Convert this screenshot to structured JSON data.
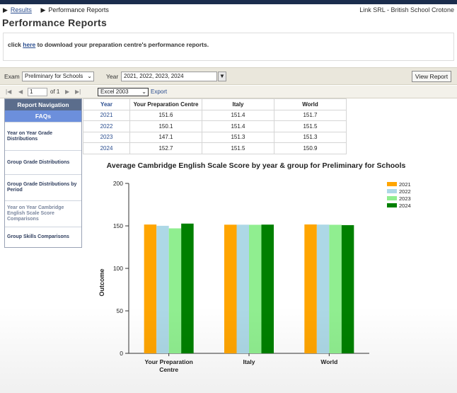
{
  "breadcrumb": {
    "results_link": "Results",
    "current": "Performance Reports",
    "right_text": "Link SRL - British School Crotone"
  },
  "page_title": "Performance Reports",
  "download": {
    "prefix": "click",
    "link_text": "here",
    "suffix": "to download your preparation centre's performance reports."
  },
  "filters": {
    "exam_label": "Exam",
    "exam_value": "Preliminary for Schools",
    "year_label": "Year",
    "year_value": "2021, 2022, 2023, 2024",
    "view_button": "View Report"
  },
  "pager": {
    "page": "1",
    "of_text": "of 1",
    "format": "Excel 2003",
    "export": "Export"
  },
  "nav": {
    "header": "Report Navigation",
    "faqs": "FAQs",
    "items": [
      "Year on Year Grade Distributions",
      "Group Grade Distributions",
      "Group Grade Distributions by Period",
      "Year on Year Cambridge English Scale Score Comparisons",
      "Group Skills Comparisons"
    ]
  },
  "table": {
    "headers": [
      "Year",
      "Your Preparation Centre",
      "Italy",
      "World"
    ],
    "rows": [
      [
        "2021",
        "151.6",
        "151.4",
        "151.7"
      ],
      [
        "2022",
        "150.1",
        "151.4",
        "151.5"
      ],
      [
        "2023",
        "147.1",
        "151.3",
        "151.3"
      ],
      [
        "2024",
        "152.7",
        "151.5",
        "150.9"
      ]
    ]
  },
  "chart_data": {
    "type": "bar",
    "title": "Average Cambridge English Scale Score by year & group for Preliminary for Schools",
    "xlabel": "",
    "ylabel": "Outcome",
    "categories": [
      "Your Preparation Centre",
      "Italy",
      "World"
    ],
    "series": [
      {
        "name": "2021",
        "color": "#ffa500",
        "values": [
          151.6,
          151.4,
          151.7
        ]
      },
      {
        "name": "2022",
        "color": "#add8e6",
        "values": [
          150.1,
          151.4,
          151.5
        ]
      },
      {
        "name": "2023",
        "color": "#90ee90",
        "values": [
          147.1,
          151.3,
          151.3
        ]
      },
      {
        "name": "2024",
        "color": "#008000",
        "values": [
          152.7,
          151.5,
          150.9
        ]
      }
    ],
    "ylim": [
      0,
      200
    ],
    "yticks": [
      0,
      50,
      100,
      150,
      200
    ],
    "grid": false,
    "legend": "top-right"
  }
}
